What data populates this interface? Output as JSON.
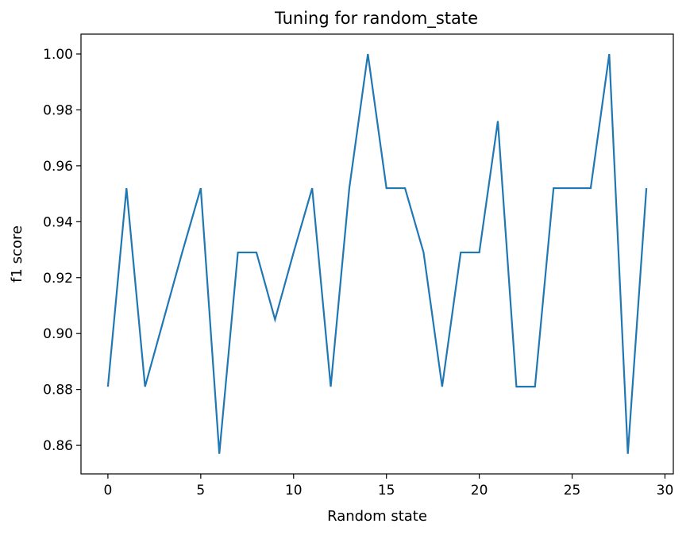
{
  "chart_data": {
    "type": "line",
    "title": "Tuning for random_state",
    "xlabel": "Random state",
    "ylabel": "f1 score",
    "xlim": [
      -1.45,
      30.45
    ],
    "ylim": [
      0.8498,
      1.0071
    ],
    "xticks": [
      0,
      5,
      10,
      15,
      20,
      25,
      30
    ],
    "xtick_labels": [
      "0",
      "5",
      "10",
      "15",
      "20",
      "25",
      "30"
    ],
    "yticks": [
      0.86,
      0.88,
      0.9,
      0.92,
      0.94,
      0.96,
      0.98,
      1.0
    ],
    "ytick_labels": [
      "0.86",
      "0.88",
      "0.90",
      "0.92",
      "0.94",
      "0.96",
      "0.98",
      "1.00"
    ],
    "grid": false,
    "line_color": "#1f77b4",
    "x": [
      0,
      1,
      2,
      3,
      4,
      5,
      6,
      7,
      8,
      9,
      10,
      11,
      12,
      13,
      14,
      15,
      16,
      17,
      18,
      19,
      20,
      21,
      22,
      23,
      24,
      25,
      26,
      27,
      28,
      29
    ],
    "values": [
      0.881,
      0.952,
      0.881,
      0.905,
      0.929,
      0.952,
      0.857,
      0.929,
      0.929,
      0.905,
      0.929,
      0.952,
      0.881,
      0.952,
      1.0,
      0.952,
      0.952,
      0.929,
      0.881,
      0.929,
      0.929,
      0.976,
      0.881,
      0.881,
      0.952,
      0.952,
      0.952,
      1.0,
      0.857,
      0.952
    ]
  }
}
